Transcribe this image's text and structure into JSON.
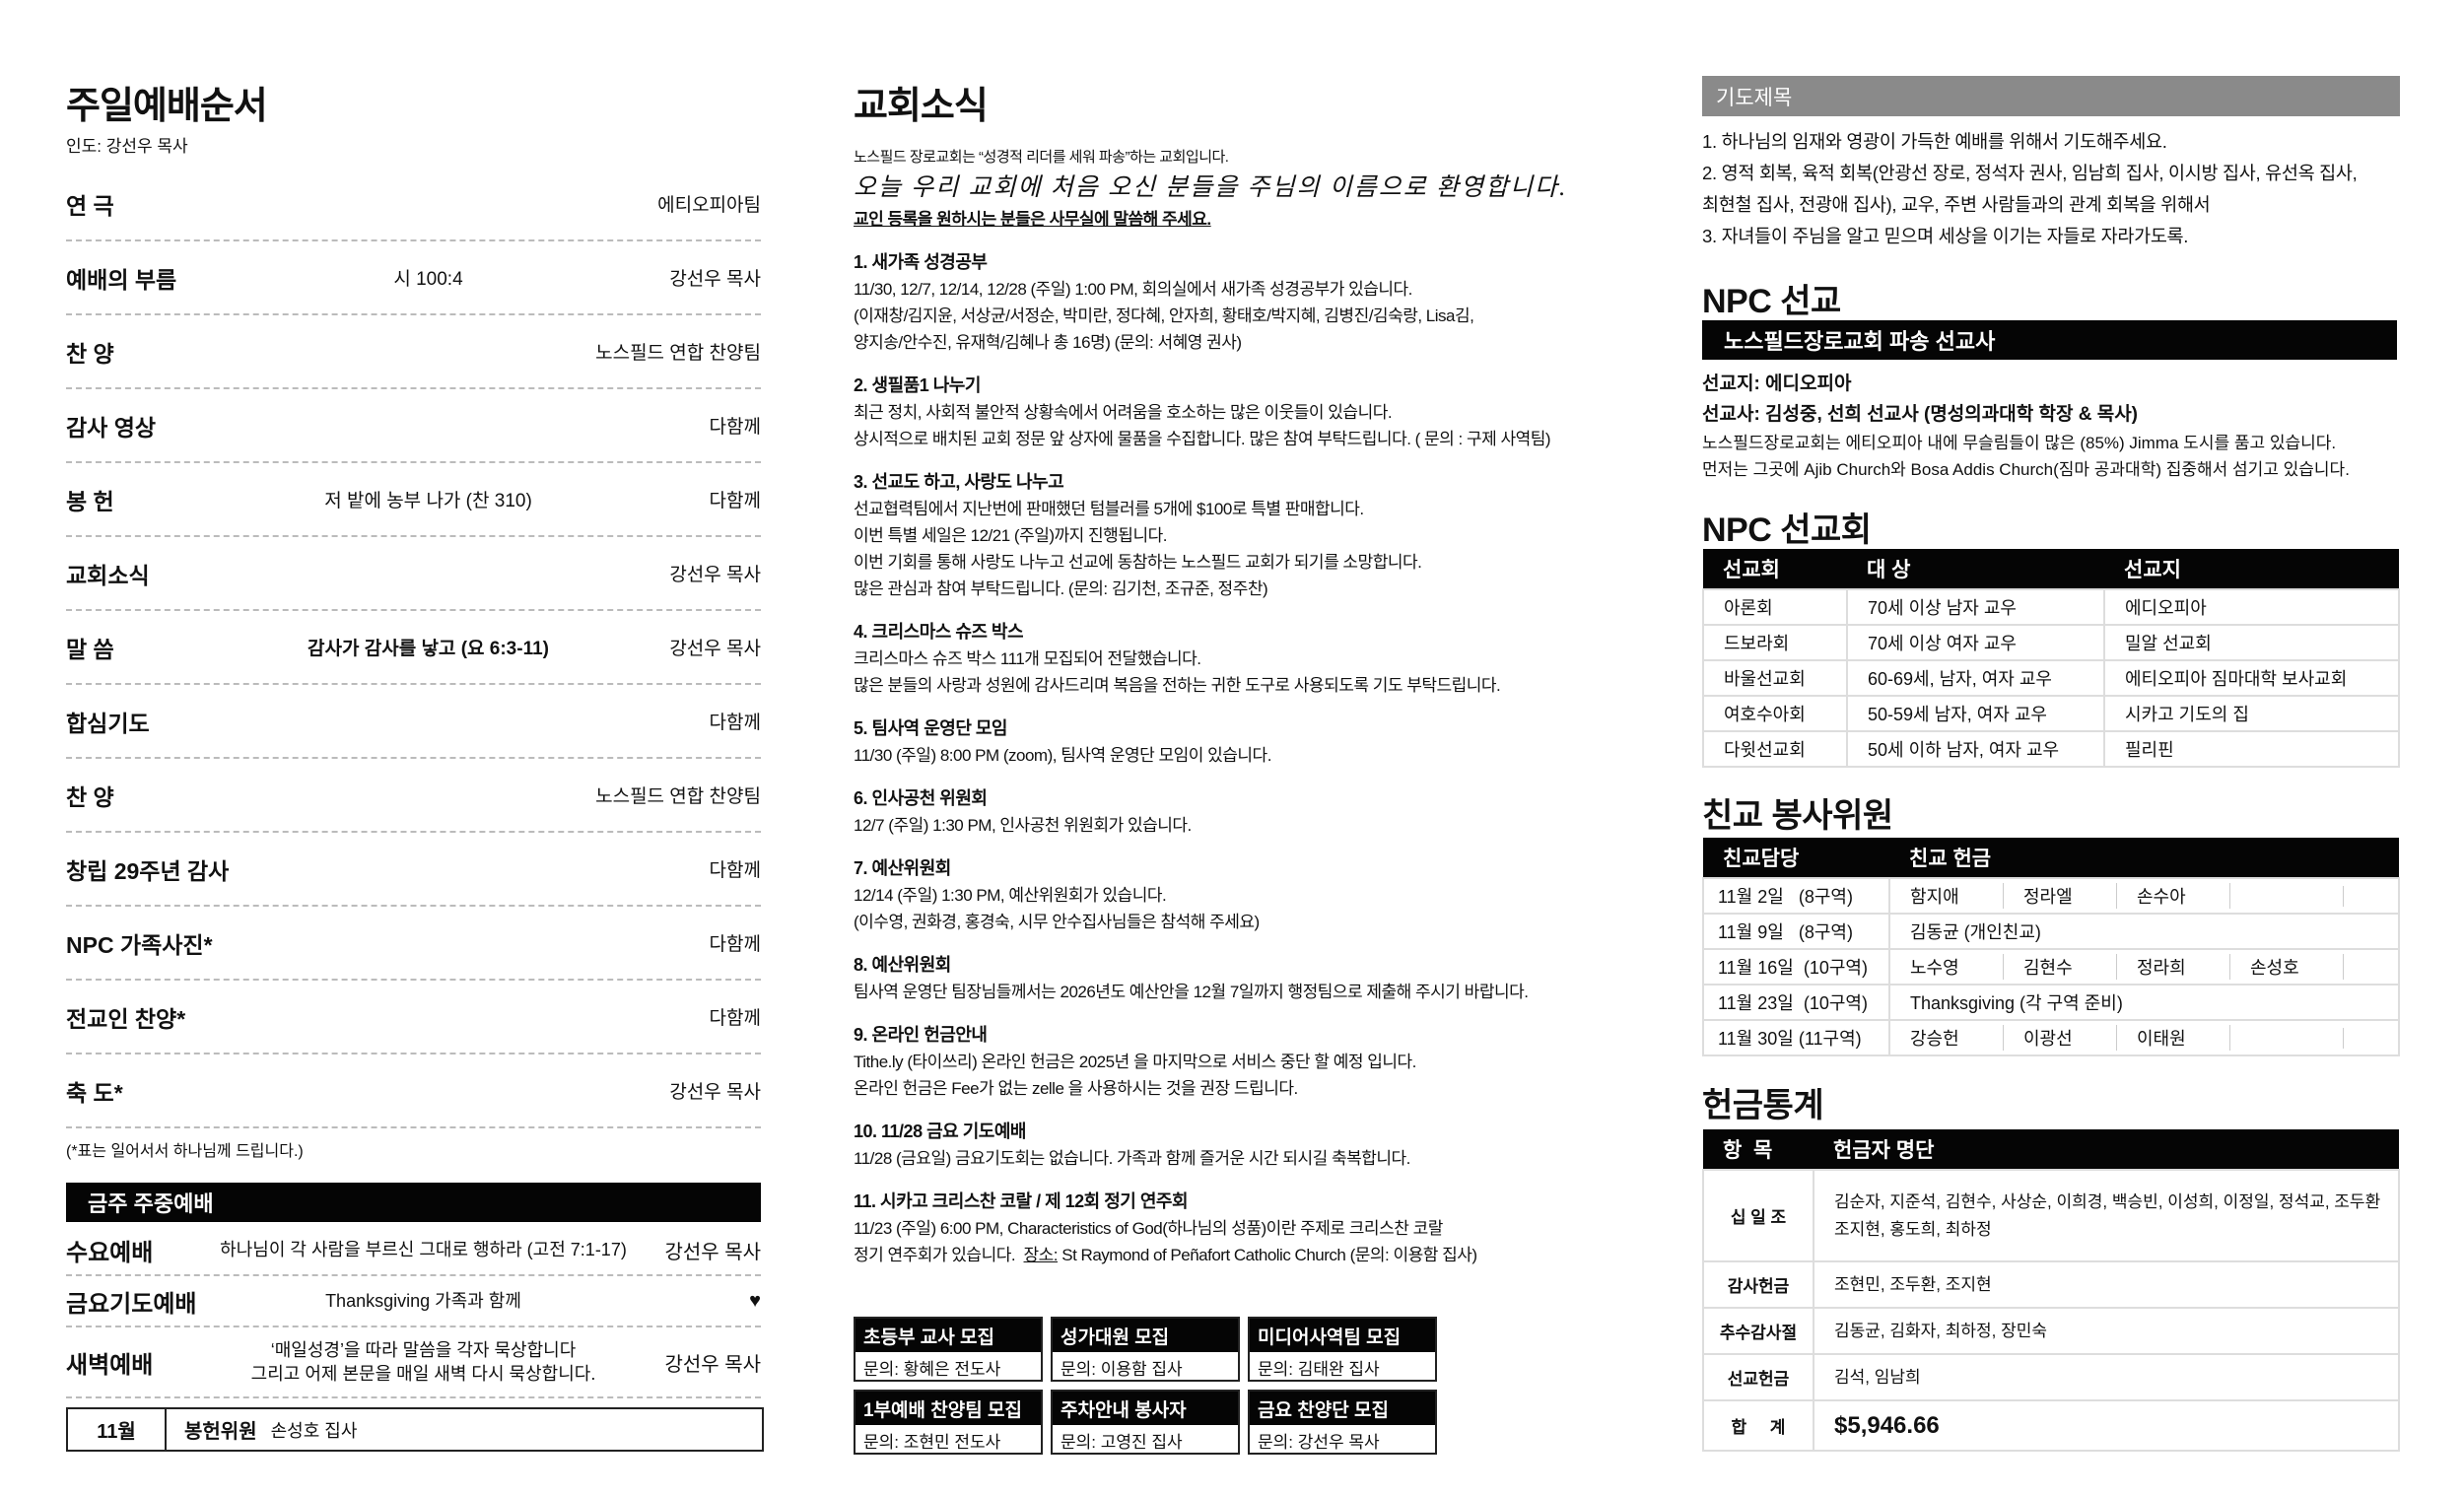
{
  "order": {
    "title": "주일예배순서",
    "leader": "인도: 강선우 목사",
    "items": [
      {
        "name": "연 극",
        "mid": "",
        "by": "에티오피아팀"
      },
      {
        "name": "예배의 부름",
        "mid": "시 100:4",
        "by": "강선우 목사"
      },
      {
        "name": "찬 양",
        "mid": "",
        "by": "노스필드 연합 찬양팀"
      },
      {
        "name": "감사 영상",
        "mid": "",
        "by": "다함께"
      },
      {
        "name": "봉 헌",
        "mid": "저 밭에 농부 나가 (찬 310)",
        "by": "다함께"
      },
      {
        "name": "교회소식",
        "mid": "",
        "by": "강선우 목사"
      },
      {
        "name": "말 씀",
        "mid": "감사가 감사를 낳고 (요 6:3-11)",
        "by": "강선우 목사"
      },
      {
        "name": "합심기도",
        "mid": "",
        "by": "다함께"
      },
      {
        "name": "찬 양",
        "mid": "",
        "by": "노스필드 연합 찬양팀"
      },
      {
        "name": "창립 29주년 감사",
        "mid": "",
        "by": "다함께"
      },
      {
        "name": "NPC 가족사진*",
        "mid": "",
        "by": "다함께"
      },
      {
        "name": "전교인 찬양*",
        "mid": "",
        "by": "다함께"
      },
      {
        "name": "축 도*",
        "mid": "",
        "by": "강선우 목사"
      }
    ],
    "note": "(*표는 일어서서 하나님께 드립니다.)"
  },
  "weekday": {
    "title": "금주 주중예배",
    "items": [
      {
        "name": "수요예배",
        "desc": "하나님이 각 사람을 부르신 그대로 행하라 (고전 7:1-17)",
        "by": "강선우 목사"
      },
      {
        "name": "금요기도예배",
        "desc": "Thanksgiving 가족과 함께",
        "by": "♥"
      },
      {
        "name": "새벽예배",
        "desc": "‘매일성경’을 따라 말씀을 각자 묵상합니다\n그리고 어제 본문을 매일 새벽 다시 묵상합니다.",
        "by": "강선우 목사"
      }
    ],
    "offering_month": "11월",
    "offering_label": "봉헌위원",
    "offering_name": "손성호 집사"
  },
  "news": {
    "title": "교회소식",
    "intro": "노스필드 장로교회는 “성경적 리더를 세워 파송”하는 교회입니다.",
    "welcome": "오늘 우리 교회에 처음 오신 분들을 주님의 이름으로 환영합니다.",
    "register": "교인 등록을 원하시는 분들은 사무실에 말씀해 주세요.",
    "sections": [
      {
        "h": "1. 새가족 성경공부",
        "lines": [
          "11/30, 12/7, 12/14, 12/28 (주일) 1:00 PM, 회의실에서 새가족 성경공부가 있습니다.",
          "(이재창/김지윤, 서상균/서정순, 박미란, 정다혜, 안자희, 황태호/박지혜, 김병진/김숙랑, Lisa김,",
          "양지송/안수진, 유재혁/김혜나 총 16명) (문의: 서혜영 권사)"
        ]
      },
      {
        "h": "2. 생필품1 나누기",
        "lines": [
          "최근 정치, 사회적 불안적 상황속에서 어려움을 호소하는 많은 이웃들이 있습니다.",
          "상시적으로 배치된 교회 정문 앞 상자에 물품을 수집합니다. 많은 참여 부탁드립니다. ( 문의 : 구제 사역팀)"
        ]
      },
      {
        "h": "3. 선교도 하고, 사랑도 나누고",
        "lines": [
          "선교협력팀에서 지난번에 판매했던 텀블러를 5개에 $100로 특별 판매합니다.",
          "이번 특별 세일은 12/21 (주일)까지 진행됩니다.",
          "이번 기회를 통해 사랑도 나누고 선교에 동참하는 노스필드 교회가 되기를 소망합니다.",
          "많은 관심과 참여 부탁드립니다. (문의: 김기천, 조규준, 정주찬)"
        ]
      },
      {
        "h": "4. 크리스마스 슈즈 박스",
        "lines": [
          "크리스마스 슈즈 박스 111개 모집되어 전달했습니다.",
          "많은 분들의 사랑과 성원에 감사드리며 복음을 전하는 귀한 도구로 사용되도록 기도 부탁드립니다."
        ]
      },
      {
        "h": "5. 팀사역 운영단 모임",
        "lines": [
          "11/30 (주일) 8:00 PM (zoom), 팀사역 운영단 모임이 있습니다."
        ]
      },
      {
        "h": "6. 인사공천 위원회",
        "lines": [
          "12/7 (주일) 1:30 PM, 인사공천 위원회가 있습니다."
        ]
      },
      {
        "h": "7. 예산위원회",
        "lines": [
          "12/14 (주일) 1:30 PM, 예산위원회가 있습니다.",
          "(이수영, 권화경, 홍경숙, 시무 안수집사님들은 참석해 주세요)"
        ]
      },
      {
        "h": "8. 예산위원회",
        "lines": [
          "팀사역 운영단 팀장님들께서는 2026년도 예산안을 12월 7일까지 행정팀으로 제출해 주시기 바랍니다."
        ]
      },
      {
        "h": "9. 온라인 헌금안내",
        "lines": [
          "Tithe.ly (타이쓰리) 온라인 헌금은 2025년 을 마지막으로 서비스 중단 할 예정 입니다.",
          "온라인 헌금은 Fee가 없는 zelle 을 사용하시는 것을 권장 드립니다."
        ]
      },
      {
        "h": "10. 11/28 금요 기도예배",
        "lines": [
          "11/28 (금요일) 금요기도회는 없습니다. 가족과 함께 즐거운 시간 되시길 축복합니다."
        ]
      },
      {
        "h": "11. 시카고 크리스찬 코랄 / 제 12회 정기 연주회",
        "lines": [
          "11/23 (주일) 6:00 PM, Characteristics of God(하나님의 성품)이란 주제로 크리스찬 코랄"
        ],
        "place_prefix": "정기 연주회가 있습니다.  ",
        "place_label": "장소:",
        "place_rest": " St Raymond of Peñafort Catholic Church (문의: 이용함 집사)"
      }
    ],
    "recruit": [
      {
        "t": "초등부 교사 모집",
        "s": "문의: 황혜은 전도사"
      },
      {
        "t": "성가대원 모집",
        "s": "문의: 이용함 집사"
      },
      {
        "t": "미디어사역팀 모집",
        "s": "문의: 김태완 집사"
      },
      {
        "t": "1부예배 찬양팀 모집",
        "s": "문의: 조현민 전도사"
      },
      {
        "t": "주차안내 봉사자",
        "s": "문의: 고영진 집사"
      },
      {
        "t": "금요 찬양단 모집",
        "s": "문의: 강선우 목사"
      }
    ]
  },
  "prayer": {
    "title": "기도제목",
    "lines": [
      "1. 하나님의 임재와 영광이 가득한 예배를 위해서 기도해주세요.",
      "2. 영적 회복, 육적 회복(안광선 장로, 정석자 권사, 임남희 집사, 이시방 집사, 유선옥 집사,",
      "최현철 집사, 전광애 집사), 교우, 주변 사람들과의 관계 회복을 위해서",
      "3. 자녀들이 주님을 알고 믿으며 세상을 이기는 자들로 자라가도록."
    ]
  },
  "mission": {
    "title": "NPC 선교",
    "bar": "노스필드장로교회 파송 선교사",
    "field": "선교지: 에디오피아",
    "missionary": "선교사: 김성중, 선희 선교사 (명성의과대학 학장 & 목사)",
    "desc": [
      "노스필드장로교회는 에티오피아 내에 무슬림들이 많은 (85%) Jimma 도시를 품고 있습니다.",
      "먼저는 그곳에 Ajib Church와 Bosa Addis Church(짐마 공과대학) 집중해서 섬기고 있습니다."
    ]
  },
  "societies": {
    "title": "NPC 선교회",
    "headers": [
      "선교회",
      "대 상",
      "선교지"
    ],
    "rows": [
      [
        "아론회",
        "70세 이상 남자 교우",
        "에디오피아"
      ],
      [
        "드보라회",
        "70세 이상 여자 교우",
        "밀알 선교회"
      ],
      [
        "바울선교회",
        "60-69세, 남자, 여자 교우",
        "에티오피아 짐마대학 보사교회"
      ],
      [
        "여호수아회",
        "50-59세 남자, 여자 교우",
        "시카고 기도의 집"
      ],
      [
        "다윗선교회",
        "50세 이하 남자, 여자 교우",
        "필리핀"
      ]
    ]
  },
  "fellowship": {
    "title": "친교 봉사위원",
    "headers": [
      "친교담당",
      "친교 헌금"
    ],
    "rows": [
      {
        "date": "11월 2일   (8구역)",
        "names": [
          "함지애",
          "정라엘",
          "손수아",
          ""
        ]
      },
      {
        "date": "11월 9일   (8구역)",
        "text": "김동균 (개인친교)"
      },
      {
        "date": "11월 16일  (10구역)",
        "names": [
          "노수영",
          "김현수",
          "정라희",
          "손성호"
        ]
      },
      {
        "date": "11월 23일  (10구역)",
        "text": "Thanksgiving (각 구역 준비)"
      },
      {
        "date": "11월 30일 (11구역)",
        "names": [
          "강승헌",
          "이광선",
          "이태원",
          ""
        ]
      }
    ]
  },
  "offerings": {
    "title": "헌금통계",
    "headers": [
      "항  목",
      "헌금자 명단"
    ],
    "rows": [
      [
        "십 일 조",
        "김순자, 지준석, 김현수, 사상순, 이희경, 백승빈, 이성희, 이정일, 정석교, 조두환\n조지현, 홍도희, 최하정"
      ],
      [
        "감사헌금",
        "조현민, 조두환, 조지현"
      ],
      [
        "추수감사절",
        "김동균, 김화자, 최하정, 장민숙"
      ],
      [
        "선교헌금",
        "김석, 임남희"
      ]
    ],
    "total_label": "합     계",
    "total": "$5,946.66"
  }
}
